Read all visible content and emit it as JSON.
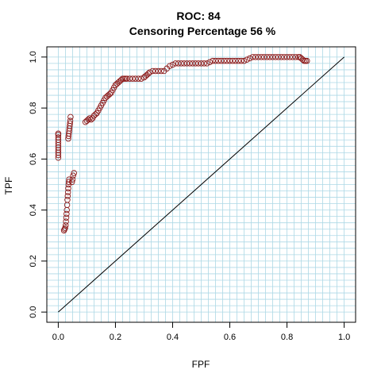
{
  "chart_data": {
    "type": "scatter",
    "title": "ROC: 84",
    "subtitle": "Censoring Percentage  56 %",
    "xlabel": "FPF",
    "ylabel": "TPF",
    "xlim": [
      -0.04,
      1.04
    ],
    "ylim": [
      -0.04,
      1.04
    ],
    "x_ticks": [
      "0.0",
      "0.2",
      "0.4",
      "0.6",
      "0.8",
      "1.0"
    ],
    "y_ticks": [
      "0.0",
      "0.2",
      "0.4",
      "0.6",
      "0.8",
      "1.0"
    ],
    "grid": true,
    "grid_step": 0.025,
    "colors": {
      "grid": "#add8e6",
      "points": "#8b1a1a",
      "diagonal": "#000000",
      "frame": "#000000"
    },
    "reference_line": {
      "x": [
        0,
        1
      ],
      "y": [
        0,
        1
      ]
    },
    "series": [
      {
        "x": [
          0.0,
          0.0,
          0.0,
          0.0,
          0.0,
          0.0,
          0.0,
          0.0,
          0.0,
          0.0,
          0.0,
          0.02,
          0.022,
          0.024,
          0.026,
          0.027,
          0.028,
          0.029,
          0.03,
          0.031,
          0.032,
          0.033,
          0.034,
          0.035,
          0.036,
          0.037,
          0.038,
          0.035,
          0.036,
          0.037,
          0.038,
          0.039,
          0.04,
          0.041,
          0.042,
          0.043,
          0.048,
          0.05,
          0.052,
          0.055,
          0.095,
          0.1,
          0.105,
          0.11,
          0.115,
          0.12,
          0.125,
          0.13,
          0.135,
          0.14,
          0.145,
          0.15,
          0.155,
          0.16,
          0.165,
          0.17,
          0.175,
          0.18,
          0.185,
          0.19,
          0.195,
          0.2,
          0.205,
          0.21,
          0.215,
          0.22,
          0.225,
          0.23,
          0.235,
          0.24,
          0.25,
          0.26,
          0.27,
          0.28,
          0.29,
          0.3,
          0.305,
          0.31,
          0.315,
          0.32,
          0.33,
          0.34,
          0.35,
          0.36,
          0.37,
          0.38,
          0.39,
          0.4,
          0.41,
          0.42,
          0.43,
          0.44,
          0.45,
          0.46,
          0.47,
          0.48,
          0.49,
          0.5,
          0.51,
          0.52,
          0.53,
          0.54,
          0.55,
          0.56,
          0.57,
          0.58,
          0.59,
          0.6,
          0.61,
          0.62,
          0.63,
          0.64,
          0.65,
          0.66,
          0.67,
          0.68,
          0.69,
          0.7,
          0.71,
          0.72,
          0.73,
          0.74,
          0.75,
          0.76,
          0.77,
          0.78,
          0.79,
          0.8,
          0.81,
          0.82,
          0.83,
          0.84,
          0.845,
          0.85,
          0.855,
          0.86,
          0.865,
          0.87
        ],
        "y": [
          0.605,
          0.615,
          0.625,
          0.635,
          0.645,
          0.655,
          0.665,
          0.675,
          0.685,
          0.695,
          0.7,
          0.32,
          0.325,
          0.33,
          0.34,
          0.355,
          0.37,
          0.385,
          0.4,
          0.42,
          0.44,
          0.455,
          0.47,
          0.485,
          0.5,
          0.51,
          0.52,
          0.68,
          0.69,
          0.7,
          0.71,
          0.72,
          0.73,
          0.74,
          0.75,
          0.765,
          0.51,
          0.52,
          0.535,
          0.545,
          0.745,
          0.75,
          0.755,
          0.76,
          0.755,
          0.76,
          0.77,
          0.775,
          0.78,
          0.79,
          0.8,
          0.81,
          0.82,
          0.83,
          0.84,
          0.845,
          0.85,
          0.855,
          0.86,
          0.87,
          0.88,
          0.89,
          0.895,
          0.9,
          0.905,
          0.91,
          0.915,
          0.915,
          0.915,
          0.915,
          0.915,
          0.915,
          0.915,
          0.915,
          0.915,
          0.92,
          0.925,
          0.93,
          0.935,
          0.94,
          0.945,
          0.945,
          0.945,
          0.945,
          0.945,
          0.955,
          0.965,
          0.97,
          0.975,
          0.975,
          0.975,
          0.975,
          0.975,
          0.975,
          0.975,
          0.975,
          0.975,
          0.975,
          0.975,
          0.975,
          0.98,
          0.985,
          0.985,
          0.985,
          0.985,
          0.985,
          0.985,
          0.985,
          0.985,
          0.985,
          0.985,
          0.985,
          0.985,
          0.99,
          0.995,
          1.0,
          1.0,
          1.0,
          1.0,
          1.0,
          1.0,
          1.0,
          1.0,
          1.0,
          1.0,
          1.0,
          1.0,
          1.0,
          1.0,
          1.0,
          1.0,
          1.0,
          1.0,
          0.995,
          0.99,
          0.985,
          0.985,
          0.985
        ]
      }
    ]
  }
}
